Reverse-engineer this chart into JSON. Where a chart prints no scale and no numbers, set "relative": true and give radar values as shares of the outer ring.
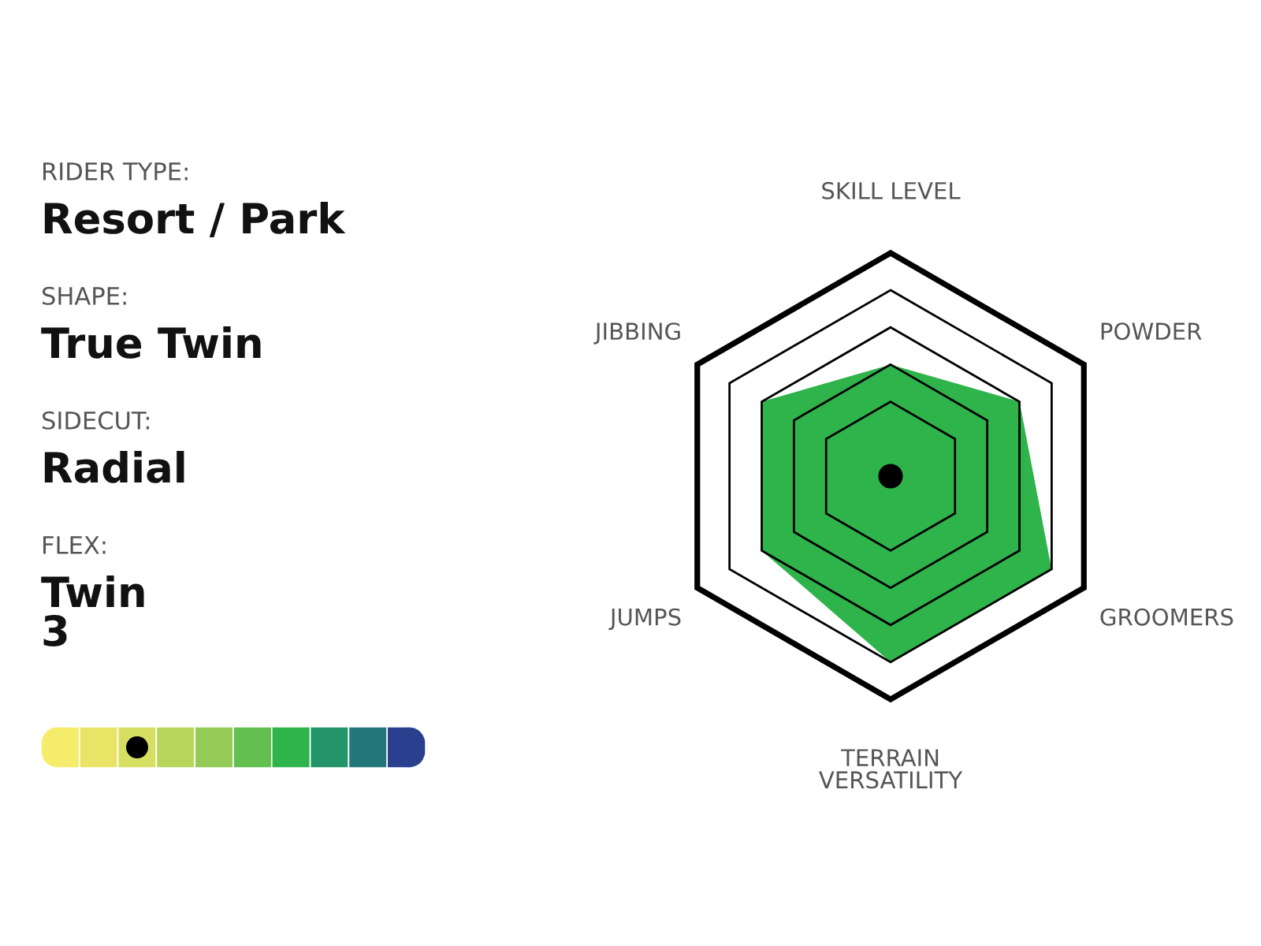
{
  "chart_data": [
    {
      "type": "other",
      "annotations": [
        "RIDER TYPE:",
        "Resort / Park",
        "SHAPE:",
        "True Twin",
        "SIDECUT:",
        "Radial",
        "FLEX:",
        "Twin\n3"
      ]
    },
    {
      "type": "radar",
      "relative": true,
      "grid": true,
      "categories": [
        "SKILL LEVEL",
        "POWDER",
        "GROOMERS",
        "TERRAIN\nVERSATILITY",
        "JUMPS",
        "JIBBING"
      ],
      "series": [
        {
          "color": "#2fb34b",
          "values": [
            0.5,
            0.667,
            0.833,
            0.833,
            0.667,
            0.667
          ]
        }
      ]
    }
  ]
}
